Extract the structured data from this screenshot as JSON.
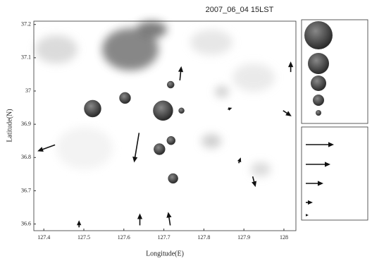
{
  "chart_data": {
    "type": "scatter",
    "title": "2007_06_04 15LST",
    "xlabel": "Longitude(E)",
    "ylabel": "Latitude(N)",
    "xlim": [
      127.375,
      128.03
    ],
    "ylim": [
      36.58,
      37.21
    ],
    "xticks": [
      127.4,
      127.5,
      127.6,
      127.7,
      127.8,
      127.9,
      128
    ],
    "yticks": [
      36.6,
      36.7,
      36.8,
      36.9,
      37,
      37.1,
      37.2
    ],
    "bubbles": {
      "color": "#3a3a3a",
      "x": [
        127.522,
        127.603,
        127.698,
        127.744,
        127.717,
        127.718,
        127.689,
        127.723
      ],
      "y": [
        36.947,
        36.979,
        36.941,
        36.941,
        37.019,
        36.851,
        36.825,
        36.737
      ],
      "sizes": [
        12,
        8,
        14,
        4,
        5,
        6,
        8,
        7
      ]
    },
    "vectors": {
      "color": "#111111",
      "x": [
        127.428,
        127.638,
        127.74,
        128.017,
        127.998,
        127.887,
        127.922,
        127.64,
        127.716,
        127.488,
        127.86
      ],
      "y": [
        36.838,
        36.874,
        37.032,
        37.057,
        36.941,
        36.783,
        36.743,
        36.596,
        36.596,
        36.59,
        36.945
      ],
      "u": [
        -25,
        -7,
        2,
        0,
        12,
        3,
        4,
        0,
        -3,
        0,
        6
      ],
      "v": [
        -9,
        -42,
        20,
        15,
        -8,
        8,
        -15,
        17,
        19,
        10,
        2
      ]
    },
    "legend_sizes": [
      20,
      15,
      11,
      8,
      4
    ],
    "legend_vector_lengths": [
      40,
      35,
      25,
      10,
      4
    ]
  }
}
